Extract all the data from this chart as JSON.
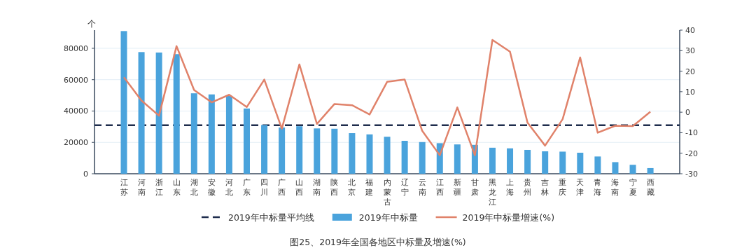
{
  "chart_data": {
    "type": "bar",
    "title": "图25、2019年全国各地区中标量及增速(%)",
    "ylabel": "个",
    "categories": [
      "江苏",
      "河南",
      "浙江",
      "山东",
      "湖北",
      "安徽",
      "河北",
      "广东",
      "四川",
      "广西",
      "山西",
      "湖南",
      "陕西",
      "北京",
      "福建",
      "内蒙古",
      "辽宁",
      "云南",
      "江西",
      "新疆",
      "甘肃",
      "黑龙江",
      "上海",
      "贵州",
      "吉林",
      "重庆",
      "天津",
      "青海",
      "海南",
      "宁夏",
      "西藏"
    ],
    "series": [
      {
        "name": "2019年中标量",
        "color": "#4aa3dc",
        "values": [
          91000,
          77600,
          77300,
          76300,
          51300,
          50600,
          49700,
          41600,
          31100,
          29500,
          30300,
          28900,
          28700,
          25900,
          25100,
          23600,
          21000,
          20200,
          19500,
          18700,
          18400,
          16600,
          16200,
          15200,
          14300,
          14100,
          13400,
          11000,
          7400,
          5700,
          3600
        ]
      },
      {
        "name": "2019年中标量增速(%)",
        "type": "line",
        "axis": "y2",
        "color": "#e0826a",
        "values": [
          17.0,
          5.7,
          -1.7,
          32.2,
          10.8,
          4.8,
          8.5,
          2.5,
          15.9,
          -8.0,
          23.3,
          -5.7,
          4.0,
          3.4,
          -1.1,
          14.8,
          15.9,
          -9.1,
          -21.0,
          2.3,
          -21.0,
          35.2,
          29.5,
          -5.1,
          -16.3,
          -3.4,
          26.7,
          -10.0,
          -6.6,
          -6.8,
          0.2
        ]
      }
    ],
    "ref_lines": [
      {
        "axis": "y",
        "value": 30900,
        "label": "2019年中标量平均线",
        "color": "#1f2d4d",
        "line_style": "dashed"
      }
    ],
    "ylim": [
      0,
      91600
    ],
    "yticks": [
      0,
      20000,
      40000,
      60000,
      80000
    ],
    "y2lim": [
      -30,
      40
    ],
    "y2ticks": [
      -30,
      -20,
      -10,
      0,
      10,
      20,
      30,
      40
    ],
    "grid": "y",
    "legend": "bottom"
  }
}
